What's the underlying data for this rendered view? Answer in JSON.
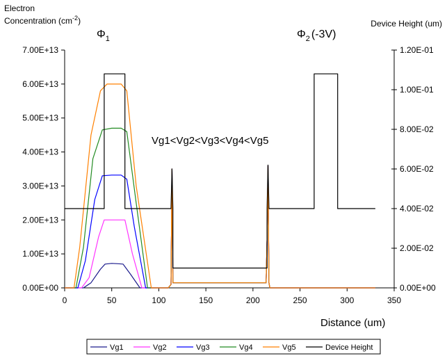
{
  "chart_data": {
    "type": "line",
    "title": "",
    "xlabel": "Distance (um)",
    "ylabel_left": "Electron Concentration (cm-2)",
    "ylabel_left_lines": [
      "Electron",
      "Concentration (cm",
      "-2",
      ")"
    ],
    "ylabel_right": "Device Height (um)",
    "xlim": [
      0,
      350
    ],
    "ylim_left": [
      0,
      70000000000000.0
    ],
    "ylim_right": [
      0,
      0.12
    ],
    "x_ticks": [
      "0",
      "50",
      "100",
      "150",
      "200",
      "250",
      "300",
      "350"
    ],
    "y_left_ticks": [
      "0.00E+00",
      "1.00E+13",
      "2.00E+13",
      "3.00E+13",
      "4.00E+13",
      "5.00E+13",
      "6.00E+13",
      "7.00E+13"
    ],
    "y_right_ticks": [
      "0.00E+00",
      "2.00E-02",
      "4.00E-02",
      "6.00E-02",
      "8.00E-02",
      "1.00E-01",
      "1.20E-01"
    ],
    "grid": false,
    "legend_position": "bottom",
    "annotations": {
      "phi1": "Φ",
      "phi1_sub": "1",
      "phi2": "Φ",
      "phi2_sub": "2",
      "phi2_suffix": "(-3V)",
      "relation": "Vg1<Vg2<Vg3<Vg4<Vg5"
    },
    "series": [
      {
        "name": "Vg1",
        "axis": "left",
        "color": "#1a1a8c",
        "x": [
          0,
          20,
          28,
          38,
          43,
          50,
          57,
          62,
          70,
          80,
          110,
          113,
          114,
          115,
          150,
          200,
          214,
          215,
          216,
          217,
          218,
          330
        ],
        "y": [
          0,
          0,
          1500000000000.0,
          5500000000000.0,
          7000000000000.0,
          7200000000000.0,
          7100000000000.0,
          7000000000000.0,
          4000000000000.0,
          0,
          0,
          1000000000000.0,
          35000000000000.0,
          1500000000000.0,
          1500000000000.0,
          1500000000000.0,
          1500000000000.0,
          15000000000000.0,
          36000000000000.0,
          1500000000000.0,
          0,
          0
        ]
      },
      {
        "name": "Vg2",
        "axis": "left",
        "color": "#ff33ff",
        "x": [
          0,
          18,
          26,
          36,
          42,
          50,
          60,
          64,
          72,
          82,
          110,
          113,
          114,
          115,
          150,
          200,
          214,
          215,
          216,
          217,
          218,
          330
        ],
        "y": [
          0,
          0,
          3000000000000.0,
          15000000000000.0,
          20000000000000.0,
          20000000000000.0,
          20000000000000.0,
          20000000000000.0,
          10000000000000.0,
          0,
          0,
          1000000000000.0,
          35000000000000.0,
          1500000000000.0,
          1500000000000.0,
          1500000000000.0,
          1500000000000.0,
          15000000000000.0,
          36000000000000.0,
          1500000000000.0,
          0,
          0
        ]
      },
      {
        "name": "Vg3",
        "axis": "left",
        "color": "#0000ff",
        "x": [
          0,
          14,
          22,
          32,
          40,
          50,
          60,
          66,
          74,
          86,
          110,
          113,
          114,
          115,
          150,
          200,
          214,
          215,
          216,
          217,
          218,
          330
        ],
        "y": [
          0,
          0,
          8000000000000.0,
          26000000000000.0,
          33000000000000.0,
          33200000000000.0,
          33200000000000.0,
          32000000000000.0,
          18000000000000.0,
          0,
          0,
          1000000000000.0,
          35000000000000.0,
          1500000000000.0,
          1500000000000.0,
          1500000000000.0,
          1500000000000.0,
          15000000000000.0,
          36000000000000.0,
          1500000000000.0,
          0,
          0
        ]
      },
      {
        "name": "Vg4",
        "axis": "left",
        "color": "#228b22",
        "x": [
          0,
          12,
          20,
          30,
          40,
          50,
          60,
          66,
          76,
          88,
          110,
          113,
          114,
          115,
          150,
          200,
          214,
          215,
          216,
          217,
          218,
          330
        ],
        "y": [
          0,
          0,
          12000000000000.0,
          38000000000000.0,
          46500000000000.0,
          47000000000000.0,
          47000000000000.0,
          46000000000000.0,
          25000000000000.0,
          0,
          0,
          1000000000000.0,
          35000000000000.0,
          1500000000000.0,
          1500000000000.0,
          1500000000000.0,
          1500000000000.0,
          15000000000000.0,
          36000000000000.0,
          1500000000000.0,
          0,
          0
        ]
      },
      {
        "name": "Vg5",
        "axis": "left",
        "color": "#ff8000",
        "x": [
          0,
          10,
          16,
          28,
          38,
          45,
          60,
          66,
          76,
          92,
          110,
          113,
          114,
          115,
          150,
          200,
          214,
          215,
          216,
          217,
          218,
          330
        ],
        "y": [
          0,
          0,
          12000000000000.0,
          45000000000000.0,
          58000000000000.0,
          60000000000000.0,
          60000000000000.0,
          58000000000000.0,
          30000000000000.0,
          0,
          0,
          1000000000000.0,
          35000000000000.0,
          1500000000000.0,
          1500000000000.0,
          1500000000000.0,
          1500000000000.0,
          15000000000000.0,
          36000000000000.0,
          1500000000000.0,
          0,
          0
        ]
      },
      {
        "name": "Device Height",
        "axis": "right",
        "color": "#000000",
        "x": [
          0,
          26,
          26,
          42,
          42,
          64,
          64,
          110,
          113,
          114,
          115,
          115,
          215,
          215,
          216,
          217,
          218,
          265,
          265,
          290,
          290,
          330
        ],
        "y": [
          0.04,
          0.04,
          0.04,
          0.04,
          0.108,
          0.108,
          0.04,
          0.04,
          0.04,
          0.06,
          0.04,
          0.01,
          0.01,
          0.04,
          0.062,
          0.04,
          0.04,
          0.04,
          0.108,
          0.108,
          0.04,
          0.04
        ]
      }
    ]
  }
}
